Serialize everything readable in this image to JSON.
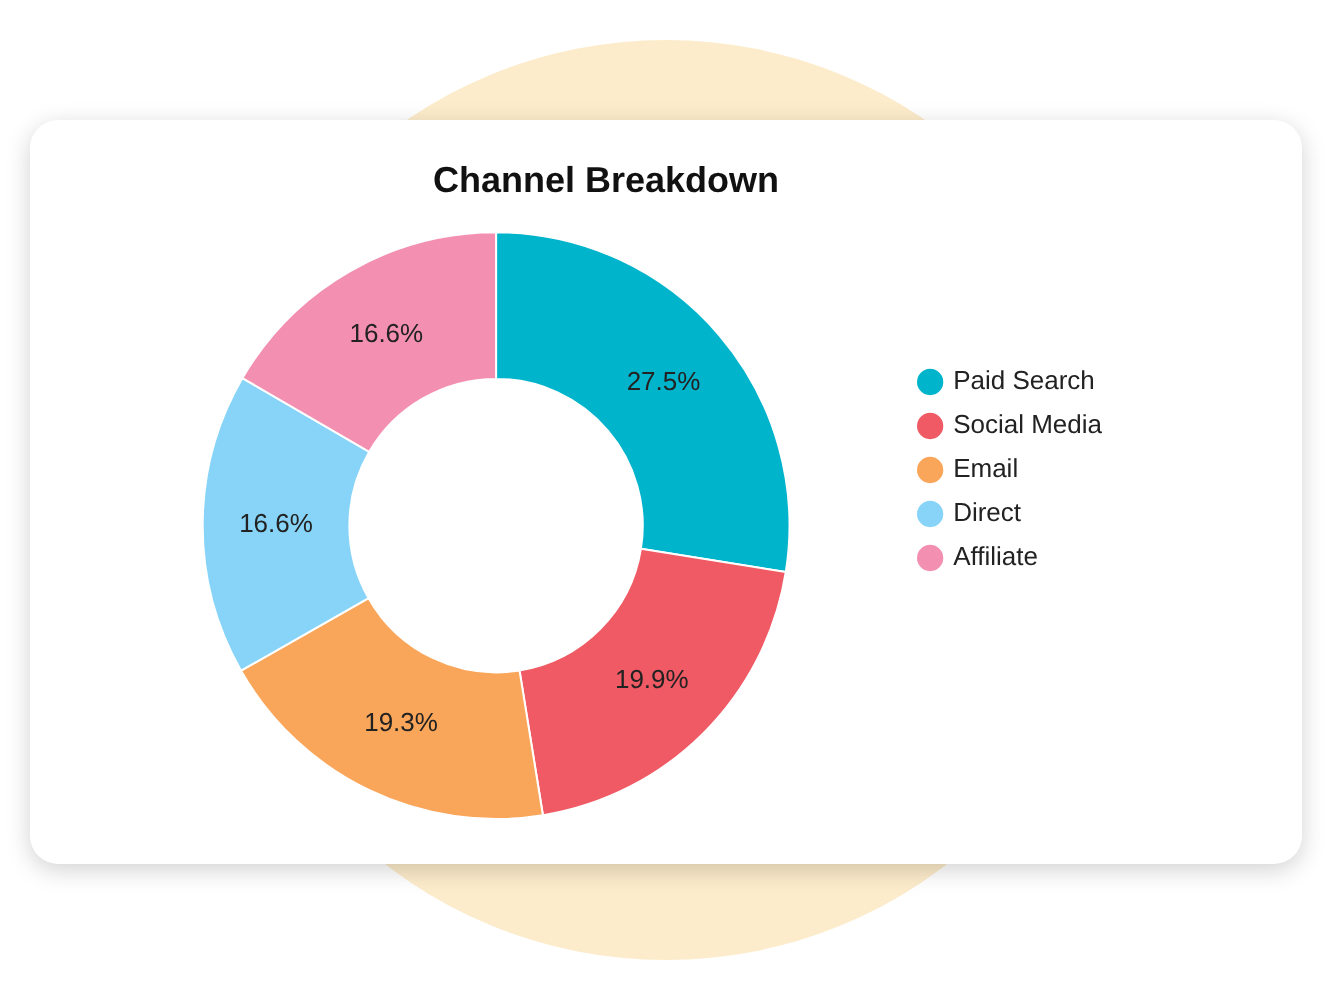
{
  "chart_data": {
    "type": "donut",
    "title": "Channel Breakdown",
    "categories": [
      "Paid Search",
      "Social Media",
      "Email",
      "Direct",
      "Affiliate"
    ],
    "values": [
      27.5,
      19.9,
      19.3,
      16.6,
      16.6
    ],
    "colors": [
      "#00b4cc",
      "#f05a64",
      "#f9a65a",
      "#87d4f8",
      "#f38fb1"
    ],
    "value_labels": [
      "27.5%",
      "19.9%",
      "19.3%",
      "16.6%",
      "16.6%"
    ],
    "legend": "right"
  }
}
